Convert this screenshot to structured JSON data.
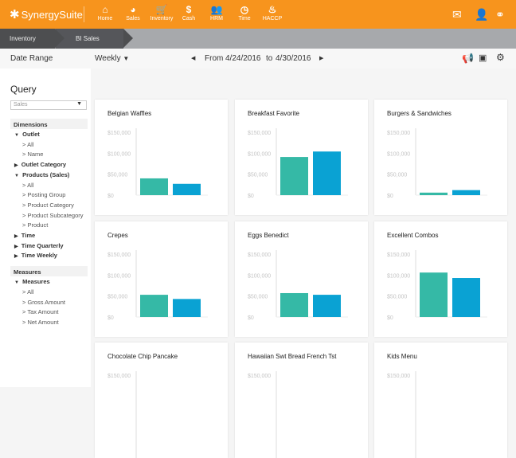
{
  "app": {
    "logo": "SynergySuite"
  },
  "nav": [
    {
      "label": "Home",
      "icon": "home-icon",
      "glyph": "⌂"
    },
    {
      "label": "Sales",
      "icon": "pie-chart-icon",
      "glyph": "◕"
    },
    {
      "label": "Inventory",
      "icon": "cart-icon",
      "glyph": "🛒"
    },
    {
      "label": "Cash",
      "icon": "dollar-icon",
      "glyph": "$"
    },
    {
      "label": "HRM",
      "icon": "people-icon",
      "glyph": "👥"
    },
    {
      "label": "Time",
      "icon": "clock-icon",
      "glyph": "◷"
    },
    {
      "label": "HACCP",
      "icon": "flame-icon",
      "glyph": "♨"
    }
  ],
  "header_icons": [
    "mail-icon",
    "user-icon",
    "link-icon"
  ],
  "breadcrumb": [
    "Inventory",
    "BI Sales"
  ],
  "toolbar": {
    "label": "Date Range",
    "period": "Weekly",
    "from_label": "From",
    "from": "4/24/2016",
    "to_label": "to",
    "to": "4/30/2016"
  },
  "sidebar": {
    "title": "Query",
    "select": "Sales",
    "dimensions_header": "Dimensions",
    "items": [
      {
        "t": "Outlet",
        "lvl": 1,
        "open": true
      },
      {
        "t": "All",
        "lvl": 2
      },
      {
        "t": "Name",
        "lvl": 2
      },
      {
        "t": "Outlet Category",
        "lvl": 1,
        "open": false
      },
      {
        "t": "Products (Sales)",
        "lvl": 1,
        "open": true
      },
      {
        "t": "All",
        "lvl": 2
      },
      {
        "t": "Posting Group",
        "lvl": 2
      },
      {
        "t": "Product Category",
        "lvl": 2
      },
      {
        "t": "Product Subcategory",
        "lvl": 2
      },
      {
        "t": "Product",
        "lvl": 2
      },
      {
        "t": "Time",
        "lvl": 1,
        "open": false
      },
      {
        "t": "Time Quarterly",
        "lvl": 1,
        "open": false
      },
      {
        "t": "Time Weekly",
        "lvl": 1,
        "open": false
      }
    ],
    "measures_header": "Measures",
    "measures": [
      {
        "t": "Measures",
        "lvl": 1,
        "open": true
      },
      {
        "t": "All",
        "lvl": 2
      },
      {
        "t": "Gross Amount",
        "lvl": 2
      },
      {
        "t": "Tax Amount",
        "lvl": 2
      },
      {
        "t": "Net Amount",
        "lvl": 2
      }
    ]
  },
  "colors": {
    "accent": "#f7941d",
    "series1": "#35b9a6",
    "series2": "#0aa2d3"
  },
  "chart_data": [
    {
      "type": "bar",
      "title": "Belgian Waffles",
      "ylim": [
        0,
        150000
      ],
      "yticks": [
        "$150,000",
        "$100,000",
        "$50,000",
        "$0"
      ],
      "values": [
        40000,
        27000
      ]
    },
    {
      "type": "bar",
      "title": "Breakfast Favorite",
      "ylim": [
        0,
        150000
      ],
      "yticks": [
        "$150,000",
        "$100,000",
        "$50,000",
        "$0"
      ],
      "values": [
        91000,
        104000
      ]
    },
    {
      "type": "bar",
      "title": "Burgers & Sandwiches",
      "ylim": [
        0,
        150000
      ],
      "yticks": [
        "$150,000",
        "$100,000",
        "$50,000",
        "$0"
      ],
      "values": [
        6000,
        12000
      ]
    },
    {
      "type": "bar",
      "title": "Crepes",
      "ylim": [
        0,
        150000
      ],
      "yticks": [
        "$150,000",
        "$100,000",
        "$50,000",
        "$0"
      ],
      "values": [
        53000,
        43000
      ]
    },
    {
      "type": "bar",
      "title": "Eggs Benedict",
      "ylim": [
        0,
        150000
      ],
      "yticks": [
        "$150,000",
        "$100,000",
        "$50,000",
        "$0"
      ],
      "values": [
        57000,
        53000
      ]
    },
    {
      "type": "bar",
      "title": "Excellent Combos",
      "ylim": [
        0,
        150000
      ],
      "yticks": [
        "$150,000",
        "$100,000",
        "$50,000",
        "$0"
      ],
      "values": [
        106000,
        93000
      ]
    },
    {
      "type": "bar",
      "title": "Chocolate Chip Pancake",
      "ylim": [
        0,
        150000
      ],
      "yticks": [
        "$150,000"
      ],
      "values": []
    },
    {
      "type": "bar",
      "title": "Hawaiian Swt Bread French Tst",
      "ylim": [
        0,
        150000
      ],
      "yticks": [
        "$150,000"
      ],
      "values": []
    },
    {
      "type": "bar",
      "title": "Kids Menu",
      "ylim": [
        0,
        150000
      ],
      "yticks": [
        "$150,000"
      ],
      "values": []
    }
  ]
}
